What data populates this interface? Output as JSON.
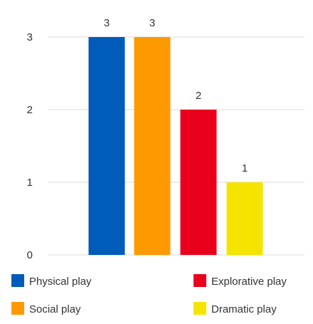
{
  "chart_data": {
    "type": "bar",
    "categories": [
      "Physical play",
      "Social play",
      "Explorative play",
      "Dramatic play"
    ],
    "values": [
      3,
      3,
      2,
      1
    ],
    "colors": [
      "#005bbb",
      "#ff9900",
      "#e8001c",
      "#f5e400"
    ],
    "ylim": [
      0,
      3
    ],
    "y_ticks": [
      0,
      1,
      2,
      3
    ],
    "grid": true,
    "legend_position": "bottom",
    "data_labels": true
  }
}
